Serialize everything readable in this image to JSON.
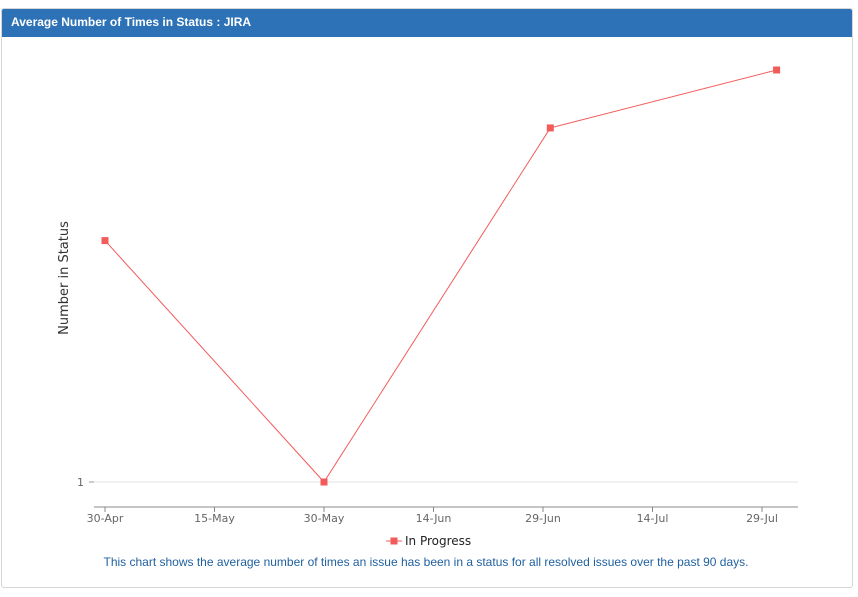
{
  "panel": {
    "title": "Average Number of Times in Status : JIRA",
    "caption": "This chart shows the average number of times an issue has been in a status for all resolved issues over the past 90 days."
  },
  "colors": {
    "header_bg": "#2d72b6",
    "series_line": "#f25b5b",
    "caption_text": "#1f5f9f"
  },
  "chart_data": {
    "type": "line",
    "title": "",
    "xlabel": "",
    "ylabel": "Number in Status",
    "x_ticks": [
      "30-Apr",
      "15-May",
      "30-May",
      "14-Jun",
      "29-Jun",
      "14-Jul",
      "29-Jul"
    ],
    "y_ticks": [
      1
    ],
    "ylim": [
      0.9,
      2.15
    ],
    "legend_position": "bottom-center",
    "grid": false,
    "series": [
      {
        "name": "In Progress",
        "marker": "square",
        "x": [
          "30-Apr",
          "30-May",
          "30-Jun",
          "31-Jul"
        ],
        "values": [
          1.75,
          1.0,
          2.1,
          2.28
        ]
      }
    ]
  }
}
